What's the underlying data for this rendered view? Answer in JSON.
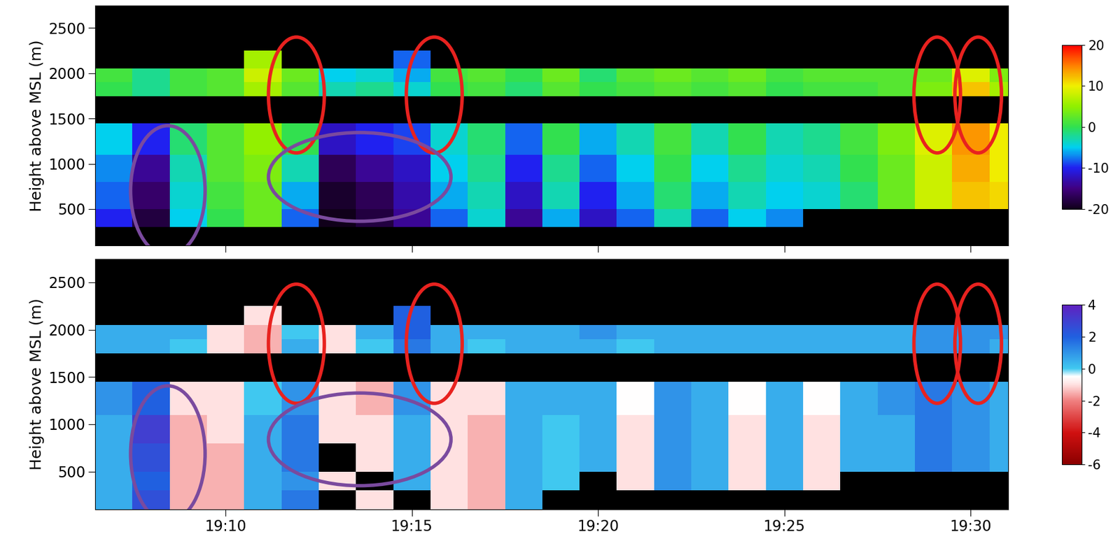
{
  "chart_data": [
    {
      "type": "heatmap",
      "ylabel": "Height above MSL (m)",
      "xlim": [
        6.5,
        31.0
      ],
      "ylim": [
        100,
        2750
      ],
      "xticks": [
        {
          "value": 10,
          "label": "19:10"
        },
        {
          "value": 15,
          "label": "19:15"
        },
        {
          "value": 20,
          "label": "19:20"
        },
        {
          "value": 25,
          "label": "19:25"
        },
        {
          "value": 30,
          "label": "19:30"
        }
      ],
      "yticks": [
        500,
        1000,
        1500,
        2000,
        2500
      ],
      "tick_labels": "y",
      "x_edges": [
        6.5,
        7.5,
        8.5,
        9.5,
        10.5,
        11.5,
        12.5,
        13.5,
        14.5,
        15.5,
        16.5,
        17.5,
        18.5,
        19.5,
        20.5,
        21.5,
        22.5,
        23.5,
        24.5,
        25.5,
        26.5,
        27.5,
        28.5,
        29.5,
        30.5,
        31.0
      ],
      "y_edges": [
        100,
        300,
        500,
        800,
        1100,
        1450,
        1750,
        1900,
        2050,
        2250
      ],
      "cells": [
        [
          null,
          null,
          null,
          null,
          null,
          null,
          null,
          null,
          null,
          null,
          null,
          null,
          null,
          null,
          null,
          null,
          null,
          null,
          null,
          null,
          null,
          null,
          null,
          null,
          null
        ],
        [
          -10,
          -18,
          -5,
          0,
          3,
          -8,
          -20,
          -18,
          -14,
          -8,
          -4,
          -14,
          -6,
          -12,
          -8,
          -3,
          -8,
          -5,
          -7,
          null,
          null,
          null,
          null,
          null,
          null
        ],
        [
          -8,
          -16,
          -4,
          1,
          3,
          -6,
          -19,
          -17,
          -13,
          -6,
          -3,
          -12,
          -3,
          -10,
          -6,
          -1,
          -6,
          -3,
          -5,
          -4,
          -1,
          3,
          8,
          12,
          11
        ],
        [
          -7,
          -14,
          -3,
          2,
          4,
          -3,
          -17,
          -14,
          -12,
          -5,
          -2,
          -10,
          -2,
          -8,
          -5,
          0,
          -5,
          -2,
          -4,
          -3,
          0,
          3,
          8,
          13,
          10
        ],
        [
          -5,
          -10,
          -1,
          2,
          5,
          0,
          -12,
          -10,
          -9,
          -4,
          -1,
          -8,
          0,
          -6,
          -3,
          1,
          -3,
          0,
          -3,
          -2,
          1,
          4,
          9,
          14,
          10
        ],
        [
          null,
          null,
          null,
          null,
          null,
          null,
          null,
          null,
          null,
          null,
          null,
          null,
          null,
          null,
          null,
          null,
          null,
          null,
          null,
          null,
          null,
          null,
          null,
          null,
          null
        ],
        [
          0,
          -2,
          1,
          2,
          6,
          2,
          -3,
          -2,
          -4,
          0,
          1,
          -1,
          2,
          0,
          1,
          2,
          1,
          2,
          0,
          1,
          1,
          2,
          4,
          12,
          6
        ],
        [
          1,
          -2,
          1,
          2,
          8,
          3,
          -5,
          -4,
          -6,
          1,
          2,
          0,
          3,
          -1,
          2,
          3,
          2,
          3,
          1,
          2,
          2,
          2,
          3,
          9,
          4
        ],
        [
          null,
          null,
          null,
          null,
          6,
          null,
          null,
          null,
          -8,
          null,
          null,
          null,
          null,
          null,
          null,
          null,
          null,
          null,
          null,
          null,
          null,
          null,
          null,
          null,
          null
        ]
      ],
      "colorbar": {
        "range": [
          -20,
          20
        ],
        "ticks": [
          -20,
          -10,
          0,
          10,
          20
        ]
      },
      "highlights": [
        {
          "x": 11.9,
          "y": 1760,
          "width": 1.5,
          "height": 1280,
          "color": "#e8221f"
        },
        {
          "x": 15.6,
          "y": 1760,
          "width": 1.5,
          "height": 1280,
          "color": "#e8221f"
        },
        {
          "x": 29.1,
          "y": 1760,
          "width": 1.25,
          "height": 1280,
          "color": "#e8221f"
        },
        {
          "x": 30.2,
          "y": 1760,
          "width": 1.25,
          "height": 1280,
          "color": "#e8221f"
        },
        {
          "x": 8.45,
          "y": 704,
          "width": 2.0,
          "height": 1434,
          "color": "#7a4a9e"
        },
        {
          "x": 13.6,
          "y": 855,
          "width": 4.9,
          "height": 980,
          "color": "#7a4a9e"
        }
      ]
    },
    {
      "type": "heatmap",
      "ylabel": "Height above MSL (m)",
      "xlim": [
        6.5,
        31.0
      ],
      "ylim": [
        100,
        2750
      ],
      "xticks": [
        {
          "value": 10,
          "label": "19:10"
        },
        {
          "value": 15,
          "label": "19:15"
        },
        {
          "value": 20,
          "label": "19:20"
        },
        {
          "value": 25,
          "label": "19:25"
        },
        {
          "value": 30,
          "label": "19:30"
        }
      ],
      "yticks": [
        500,
        1000,
        1500,
        2000,
        2500
      ],
      "x_edges": [
        6.5,
        7.5,
        8.5,
        9.5,
        10.5,
        11.5,
        12.5,
        13.5,
        14.5,
        15.5,
        16.5,
        17.5,
        18.5,
        19.5,
        20.5,
        21.5,
        22.5,
        23.5,
        24.5,
        25.5,
        26.5,
        27.5,
        28.5,
        29.5,
        30.5,
        31.0
      ],
      "y_edges": [
        100,
        300,
        500,
        800,
        1100,
        1450,
        1750,
        1900,
        2050,
        2250
      ],
      "cells": [
        [
          0.5,
          2.5,
          -1.5,
          -1.5,
          0.5,
          1.5,
          null,
          -1,
          null,
          -1,
          -1.5,
          0.5,
          null,
          null,
          null,
          null,
          null,
          null,
          null,
          null,
          null,
          null,
          null,
          null,
          null
        ],
        [
          0.5,
          2,
          -1.5,
          -1.5,
          0.5,
          1,
          -1,
          null,
          0.5,
          -1,
          -1.5,
          0.5,
          0,
          null,
          -1,
          1,
          0.5,
          -1,
          0.5,
          -1,
          null,
          null,
          null,
          null,
          null
        ],
        [
          0.5,
          2.5,
          -1.5,
          -1.5,
          0.5,
          1.5,
          null,
          -1,
          0.5,
          -1,
          -1.5,
          0.5,
          0,
          0.5,
          -1,
          1,
          0.5,
          -1,
          0.5,
          -1,
          0.5,
          0.5,
          1.5,
          1,
          0.5
        ],
        [
          0.5,
          3,
          -1.5,
          -1,
          0.5,
          1.5,
          -1,
          -1,
          0.5,
          -1,
          -1.5,
          0.5,
          0,
          0.5,
          -1,
          1,
          0.5,
          -1,
          0.5,
          -1,
          0.5,
          0.5,
          1.5,
          1,
          0.5
        ],
        [
          1,
          2,
          -1,
          -1,
          0,
          1,
          -1,
          -1.5,
          1,
          -1,
          -1,
          0.5,
          0.5,
          0.5,
          -0.5,
          1,
          0.5,
          -0.5,
          0.5,
          -0.5,
          0.5,
          1,
          1.5,
          1,
          0.5
        ],
        [
          null,
          null,
          null,
          null,
          null,
          null,
          null,
          null,
          null,
          null,
          null,
          null,
          null,
          null,
          null,
          null,
          null,
          null,
          null,
          null,
          null,
          null,
          null,
          null,
          null
        ],
        [
          0.5,
          0.5,
          0,
          -1,
          -1.5,
          0.5,
          -1,
          0,
          1.5,
          0.5,
          0,
          0.5,
          0.5,
          0.5,
          0,
          0.5,
          0.5,
          0.5,
          0.5,
          0.5,
          0.5,
          0.5,
          1,
          1,
          0.5
        ],
        [
          0.5,
          0.5,
          0.5,
          -1,
          -1.5,
          0,
          -1,
          0.5,
          2,
          0.5,
          0.5,
          0.5,
          0.5,
          1,
          0.5,
          0.5,
          0.5,
          0.5,
          0.5,
          0.5,
          0.5,
          0.5,
          1,
          1,
          1
        ],
        [
          null,
          null,
          null,
          null,
          -1,
          null,
          null,
          null,
          2,
          null,
          null,
          null,
          null,
          null,
          null,
          null,
          null,
          null,
          null,
          null,
          null,
          null,
          null,
          null,
          null
        ]
      ],
      "colorbar": {
        "range": [
          -6,
          4
        ],
        "ticks": [
          -6,
          -4,
          -2,
          0,
          2,
          4
        ]
      },
      "highlights": [
        {
          "x": 11.9,
          "y": 1851,
          "width": 1.5,
          "height": 1260,
          "color": "#e8221f"
        },
        {
          "x": 15.6,
          "y": 1851,
          "width": 1.5,
          "height": 1260,
          "color": "#e8221f"
        },
        {
          "x": 29.1,
          "y": 1851,
          "width": 1.25,
          "height": 1260,
          "color": "#e8221f"
        },
        {
          "x": 30.2,
          "y": 1851,
          "width": 1.25,
          "height": 1260,
          "color": "#e8221f"
        },
        {
          "x": 8.45,
          "y": 689,
          "width": 2.0,
          "height": 1434,
          "color": "#7a4a9e"
        },
        {
          "x": 13.6,
          "y": 840,
          "width": 4.9,
          "height": 980,
          "color": "#7a4a9e"
        }
      ]
    }
  ]
}
